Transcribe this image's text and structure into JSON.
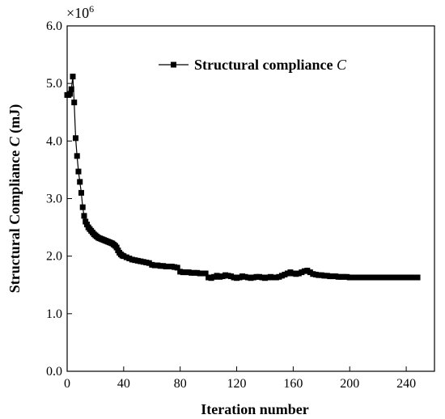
{
  "chart_data": {
    "type": "line",
    "xlabel": "Iteration number",
    "ylabel_prefix": "Structural Compliance ",
    "ylabel_var": "C",
    "ylabel_suffix": " (mJ)",
    "y_multiplier": "×10",
    "y_multiplier_exp": "6",
    "xlim": [
      0,
      260
    ],
    "ylim": [
      0,
      6
    ],
    "xticks": [
      0,
      40,
      80,
      120,
      160,
      200,
      240
    ],
    "yticks": [
      0.0,
      1.0,
      2.0,
      3.0,
      4.0,
      5.0,
      6.0
    ],
    "grid": false,
    "legend_position": "top-right",
    "series": [
      {
        "name": "Structural compliance",
        "name_var": "C",
        "marker": "square",
        "color": "#000000",
        "x": [
          0,
          1,
          2,
          3,
          4,
          5,
          6,
          7,
          8,
          9,
          10,
          11,
          12,
          13,
          14,
          15,
          16,
          17,
          18,
          19,
          20,
          21,
          22,
          23,
          24,
          25,
          26,
          27,
          28,
          29,
          30,
          31,
          32,
          33,
          34,
          35,
          36,
          37,
          38,
          39,
          40,
          42,
          44,
          46,
          48,
          50,
          52,
          54,
          56,
          58,
          60,
          62,
          64,
          66,
          68,
          70,
          72,
          74,
          76,
          78,
          80,
          82,
          84,
          86,
          88,
          90,
          92,
          94,
          96,
          98,
          100,
          102,
          104,
          106,
          108,
          110,
          112,
          114,
          116,
          118,
          120,
          122,
          124,
          126,
          128,
          130,
          132,
          134,
          136,
          138,
          140,
          142,
          144,
          146,
          148,
          150,
          152,
          154,
          156,
          158,
          160,
          162,
          164,
          166,
          168,
          170,
          172,
          174,
          176,
          178,
          180,
          182,
          184,
          186,
          188,
          190,
          192,
          194,
          196,
          198,
          200,
          202,
          204,
          206,
          208,
          210,
          212,
          214,
          216,
          218,
          220,
          222,
          224,
          226,
          228,
          230,
          232,
          234,
          236,
          238,
          240,
          242,
          244,
          246,
          248
        ],
        "y": [
          4.8,
          4.8,
          4.82,
          4.9,
          5.12,
          4.67,
          4.05,
          3.74,
          3.47,
          3.29,
          3.1,
          2.85,
          2.7,
          2.6,
          2.55,
          2.5,
          2.47,
          2.44,
          2.41,
          2.38,
          2.36,
          2.34,
          2.32,
          2.31,
          2.3,
          2.29,
          2.28,
          2.27,
          2.26,
          2.25,
          2.24,
          2.23,
          2.22,
          2.2,
          2.18,
          2.15,
          2.1,
          2.06,
          2.03,
          2.01,
          2.0,
          1.98,
          1.96,
          1.94,
          1.93,
          1.92,
          1.91,
          1.9,
          1.89,
          1.88,
          1.85,
          1.84,
          1.84,
          1.83,
          1.83,
          1.82,
          1.82,
          1.82,
          1.81,
          1.8,
          1.73,
          1.72,
          1.72,
          1.72,
          1.71,
          1.71,
          1.71,
          1.7,
          1.7,
          1.7,
          1.63,
          1.62,
          1.64,
          1.66,
          1.64,
          1.65,
          1.67,
          1.66,
          1.65,
          1.63,
          1.62,
          1.63,
          1.65,
          1.64,
          1.63,
          1.62,
          1.63,
          1.64,
          1.64,
          1.63,
          1.62,
          1.63,
          1.64,
          1.63,
          1.63,
          1.64,
          1.66,
          1.68,
          1.7,
          1.72,
          1.7,
          1.69,
          1.7,
          1.72,
          1.74,
          1.75,
          1.72,
          1.69,
          1.68,
          1.67,
          1.67,
          1.66,
          1.66,
          1.65,
          1.65,
          1.65,
          1.64,
          1.64,
          1.64,
          1.64,
          1.63,
          1.63,
          1.63,
          1.63,
          1.63,
          1.63,
          1.63,
          1.63,
          1.63,
          1.63,
          1.63,
          1.63,
          1.63,
          1.63,
          1.63,
          1.63,
          1.63,
          1.63,
          1.63,
          1.63,
          1.63,
          1.63,
          1.63,
          1.63,
          1.63
        ]
      }
    ]
  }
}
